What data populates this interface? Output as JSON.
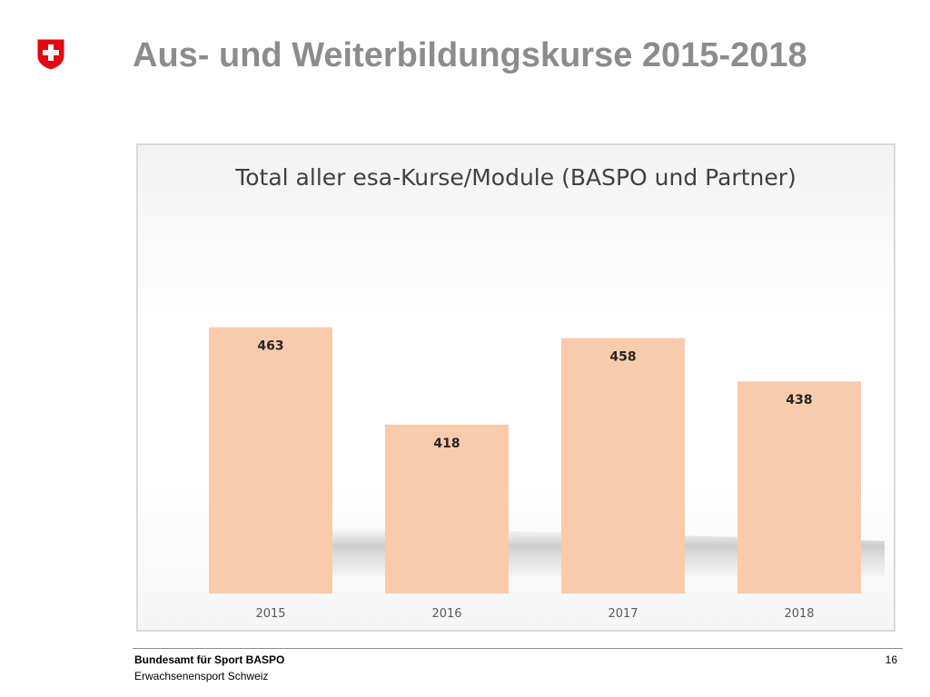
{
  "slide": {
    "title": "Aus- und Weiterbildungskurse 2015-2018",
    "logo_icon": "swiss-cross-icon",
    "brand_color": "#e30613"
  },
  "footer": {
    "organization": "Bundesamt für Sport BASPO",
    "unit": "Erwachsenensport Schweiz",
    "page_number": "16"
  },
  "chart_data": {
    "type": "bar",
    "title": "Total aller esa-Kurse/Module (BASPO und Partner)",
    "categories": [
      "2015",
      "2016",
      "2017",
      "2018"
    ],
    "values": [
      463,
      418,
      458,
      438
    ],
    "data_labels": [
      "463",
      "418",
      "458",
      "438"
    ],
    "ylim": [
      340,
      480
    ],
    "bar_color": "#f8cbad",
    "grid": false,
    "legend": "none",
    "xlabel": "",
    "ylabel": ""
  }
}
